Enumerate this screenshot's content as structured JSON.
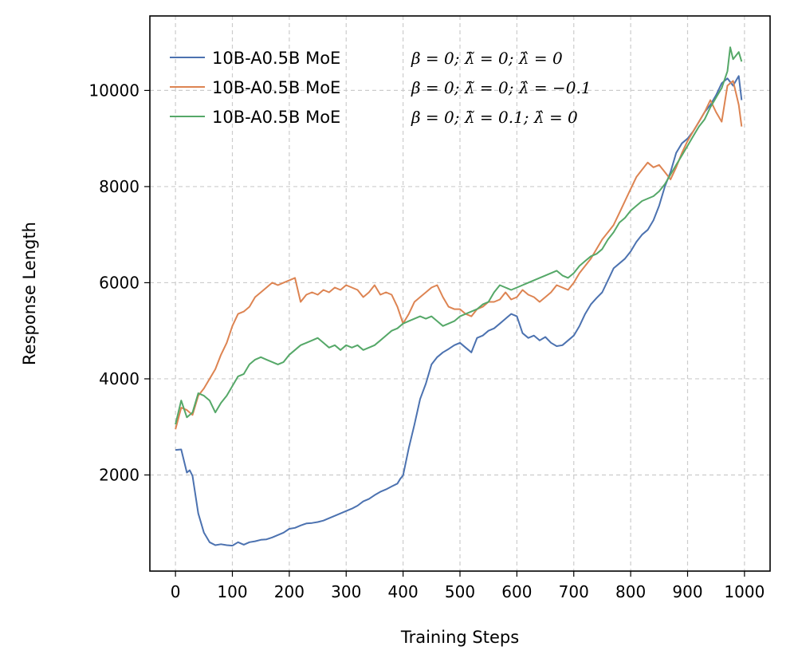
{
  "chart_data": {
    "type": "line",
    "title": "",
    "xlabel": "Training Steps",
    "ylabel": "Response Length",
    "xlim": [
      -45,
      1045
    ],
    "ylim": [
      0,
      11550
    ],
    "x_ticks": [
      0,
      100,
      200,
      300,
      400,
      500,
      600,
      700,
      800,
      900,
      1000
    ],
    "x_tick_labels": [
      "0",
      "100",
      "200",
      "300",
      "400",
      "500",
      "600",
      "700",
      "800",
      "900",
      "1000"
    ],
    "y_ticks": [
      2000,
      4000,
      6000,
      8000,
      10000
    ],
    "y_tick_labels": [
      "2000",
      "4000",
      "6000",
      "8000",
      "10000"
    ],
    "grid": true,
    "legend_position": "top-left",
    "series": [
      {
        "name": "10B-A0.5B MoE",
        "params": "β = 0;  λ̃ = 0;  λ̂ = 0",
        "color": "#4c72b0",
        "points": [
          [
            0,
            2520
          ],
          [
            10,
            2530
          ],
          [
            20,
            2050
          ],
          [
            25,
            2100
          ],
          [
            30,
            1980
          ],
          [
            40,
            1200
          ],
          [
            50,
            800
          ],
          [
            60,
            600
          ],
          [
            70,
            540
          ],
          [
            80,
            560
          ],
          [
            90,
            540
          ],
          [
            100,
            530
          ],
          [
            110,
            600
          ],
          [
            120,
            550
          ],
          [
            130,
            600
          ],
          [
            140,
            620
          ],
          [
            150,
            650
          ],
          [
            160,
            660
          ],
          [
            170,
            700
          ],
          [
            180,
            750
          ],
          [
            190,
            800
          ],
          [
            200,
            880
          ],
          [
            210,
            900
          ],
          [
            220,
            950
          ],
          [
            230,
            990
          ],
          [
            240,
            1000
          ],
          [
            250,
            1020
          ],
          [
            260,
            1050
          ],
          [
            270,
            1100
          ],
          [
            280,
            1150
          ],
          [
            290,
            1200
          ],
          [
            300,
            1250
          ],
          [
            310,
            1300
          ],
          [
            320,
            1360
          ],
          [
            330,
            1450
          ],
          [
            340,
            1500
          ],
          [
            350,
            1580
          ],
          [
            360,
            1650
          ],
          [
            370,
            1700
          ],
          [
            380,
            1760
          ],
          [
            390,
            1820
          ],
          [
            395,
            1920
          ],
          [
            400,
            1990
          ],
          [
            410,
            2560
          ],
          [
            420,
            3050
          ],
          [
            430,
            3580
          ],
          [
            440,
            3900
          ],
          [
            450,
            4300
          ],
          [
            460,
            4450
          ],
          [
            470,
            4550
          ],
          [
            480,
            4620
          ],
          [
            490,
            4700
          ],
          [
            500,
            4750
          ],
          [
            510,
            4650
          ],
          [
            520,
            4550
          ],
          [
            530,
            4850
          ],
          [
            540,
            4900
          ],
          [
            550,
            5000
          ],
          [
            560,
            5050
          ],
          [
            570,
            5150
          ],
          [
            580,
            5250
          ],
          [
            590,
            5350
          ],
          [
            600,
            5300
          ],
          [
            610,
            4950
          ],
          [
            620,
            4850
          ],
          [
            630,
            4900
          ],
          [
            640,
            4800
          ],
          [
            650,
            4870
          ],
          [
            660,
            4750
          ],
          [
            670,
            4680
          ],
          [
            680,
            4700
          ],
          [
            690,
            4800
          ],
          [
            700,
            4900
          ],
          [
            710,
            5100
          ],
          [
            720,
            5350
          ],
          [
            730,
            5550
          ],
          [
            740,
            5680
          ],
          [
            750,
            5800
          ],
          [
            760,
            6050
          ],
          [
            770,
            6300
          ],
          [
            780,
            6400
          ],
          [
            790,
            6500
          ],
          [
            800,
            6650
          ],
          [
            810,
            6850
          ],
          [
            820,
            7000
          ],
          [
            830,
            7100
          ],
          [
            840,
            7300
          ],
          [
            850,
            7600
          ],
          [
            860,
            8000
          ],
          [
            870,
            8300
          ],
          [
            880,
            8700
          ],
          [
            890,
            8900
          ],
          [
            900,
            9000
          ],
          [
            910,
            9150
          ],
          [
            920,
            9350
          ],
          [
            930,
            9550
          ],
          [
            940,
            9700
          ],
          [
            950,
            9900
          ],
          [
            960,
            10150
          ],
          [
            970,
            10250
          ],
          [
            980,
            10100
          ],
          [
            990,
            10300
          ],
          [
            995,
            9800
          ]
        ]
      },
      {
        "name": "10B-A0.5B MoE",
        "params": "β = 0;  λ̃ = 0;  λ̂ = −0.1",
        "color": "#dd8452",
        "points": [
          [
            0,
            2950
          ],
          [
            10,
            3400
          ],
          [
            20,
            3350
          ],
          [
            30,
            3250
          ],
          [
            40,
            3650
          ],
          [
            50,
            3800
          ],
          [
            60,
            4000
          ],
          [
            70,
            4200
          ],
          [
            80,
            4500
          ],
          [
            90,
            4750
          ],
          [
            100,
            5100
          ],
          [
            110,
            5350
          ],
          [
            120,
            5400
          ],
          [
            130,
            5500
          ],
          [
            140,
            5700
          ],
          [
            150,
            5800
          ],
          [
            160,
            5900
          ],
          [
            170,
            6000
          ],
          [
            180,
            5950
          ],
          [
            190,
            6000
          ],
          [
            200,
            6050
          ],
          [
            210,
            6100
          ],
          [
            220,
            5600
          ],
          [
            230,
            5750
          ],
          [
            240,
            5800
          ],
          [
            250,
            5750
          ],
          [
            260,
            5850
          ],
          [
            270,
            5800
          ],
          [
            280,
            5900
          ],
          [
            290,
            5850
          ],
          [
            300,
            5950
          ],
          [
            310,
            5900
          ],
          [
            320,
            5850
          ],
          [
            330,
            5700
          ],
          [
            340,
            5800
          ],
          [
            350,
            5950
          ],
          [
            360,
            5750
          ],
          [
            370,
            5800
          ],
          [
            380,
            5750
          ],
          [
            390,
            5500
          ],
          [
            400,
            5150
          ],
          [
            410,
            5350
          ],
          [
            420,
            5600
          ],
          [
            430,
            5700
          ],
          [
            440,
            5800
          ],
          [
            450,
            5900
          ],
          [
            460,
            5950
          ],
          [
            470,
            5700
          ],
          [
            480,
            5500
          ],
          [
            490,
            5450
          ],
          [
            500,
            5450
          ],
          [
            510,
            5350
          ],
          [
            520,
            5300
          ],
          [
            530,
            5450
          ],
          [
            540,
            5500
          ],
          [
            550,
            5600
          ],
          [
            560,
            5600
          ],
          [
            570,
            5650
          ],
          [
            580,
            5800
          ],
          [
            590,
            5650
          ],
          [
            600,
            5700
          ],
          [
            610,
            5850
          ],
          [
            620,
            5750
          ],
          [
            630,
            5700
          ],
          [
            640,
            5600
          ],
          [
            650,
            5700
          ],
          [
            660,
            5800
          ],
          [
            670,
            5950
          ],
          [
            680,
            5900
          ],
          [
            690,
            5850
          ],
          [
            700,
            6000
          ],
          [
            710,
            6200
          ],
          [
            720,
            6350
          ],
          [
            730,
            6500
          ],
          [
            740,
            6700
          ],
          [
            750,
            6900
          ],
          [
            760,
            7050
          ],
          [
            770,
            7200
          ],
          [
            780,
            7450
          ],
          [
            790,
            7700
          ],
          [
            800,
            7950
          ],
          [
            810,
            8200
          ],
          [
            820,
            8350
          ],
          [
            830,
            8500
          ],
          [
            840,
            8400
          ],
          [
            850,
            8450
          ],
          [
            860,
            8300
          ],
          [
            870,
            8150
          ],
          [
            880,
            8400
          ],
          [
            890,
            8700
          ],
          [
            900,
            8950
          ],
          [
            910,
            9150
          ],
          [
            920,
            9350
          ],
          [
            930,
            9550
          ],
          [
            940,
            9800
          ],
          [
            950,
            9550
          ],
          [
            960,
            9350
          ],
          [
            970,
            10100
          ],
          [
            980,
            10200
          ],
          [
            990,
            9700
          ],
          [
            995,
            9250
          ]
        ]
      },
      {
        "name": "10B-A0.5B MoE",
        "params": "β = 0;  λ̃ = 0.1;  λ̂ = 0",
        "color": "#55a868",
        "points": [
          [
            0,
            3050
          ],
          [
            10,
            3550
          ],
          [
            20,
            3200
          ],
          [
            30,
            3300
          ],
          [
            40,
            3700
          ],
          [
            50,
            3650
          ],
          [
            60,
            3550
          ],
          [
            70,
            3300
          ],
          [
            80,
            3500
          ],
          [
            90,
            3650
          ],
          [
            100,
            3850
          ],
          [
            110,
            4050
          ],
          [
            120,
            4100
          ],
          [
            130,
            4300
          ],
          [
            140,
            4400
          ],
          [
            150,
            4450
          ],
          [
            160,
            4400
          ],
          [
            170,
            4350
          ],
          [
            180,
            4300
          ],
          [
            190,
            4350
          ],
          [
            200,
            4500
          ],
          [
            210,
            4600
          ],
          [
            220,
            4700
          ],
          [
            230,
            4750
          ],
          [
            240,
            4800
          ],
          [
            250,
            4850
          ],
          [
            260,
            4750
          ],
          [
            270,
            4650
          ],
          [
            280,
            4700
          ],
          [
            290,
            4600
          ],
          [
            300,
            4700
          ],
          [
            310,
            4650
          ],
          [
            320,
            4700
          ],
          [
            330,
            4600
          ],
          [
            340,
            4650
          ],
          [
            350,
            4700
          ],
          [
            360,
            4800
          ],
          [
            370,
            4900
          ],
          [
            380,
            5000
          ],
          [
            390,
            5050
          ],
          [
            400,
            5150
          ],
          [
            410,
            5200
          ],
          [
            420,
            5250
          ],
          [
            430,
            5300
          ],
          [
            440,
            5250
          ],
          [
            450,
            5300
          ],
          [
            460,
            5200
          ],
          [
            470,
            5100
          ],
          [
            480,
            5150
          ],
          [
            490,
            5200
          ],
          [
            500,
            5300
          ],
          [
            510,
            5350
          ],
          [
            520,
            5400
          ],
          [
            530,
            5450
          ],
          [
            540,
            5550
          ],
          [
            550,
            5600
          ],
          [
            560,
            5800
          ],
          [
            570,
            5950
          ],
          [
            580,
            5900
          ],
          [
            590,
            5850
          ],
          [
            600,
            5900
          ],
          [
            610,
            5950
          ],
          [
            620,
            6000
          ],
          [
            630,
            6050
          ],
          [
            640,
            6100
          ],
          [
            650,
            6150
          ],
          [
            660,
            6200
          ],
          [
            670,
            6250
          ],
          [
            680,
            6150
          ],
          [
            690,
            6100
          ],
          [
            700,
            6200
          ],
          [
            710,
            6350
          ],
          [
            720,
            6450
          ],
          [
            730,
            6550
          ],
          [
            740,
            6600
          ],
          [
            750,
            6700
          ],
          [
            760,
            6900
          ],
          [
            770,
            7050
          ],
          [
            780,
            7250
          ],
          [
            790,
            7350
          ],
          [
            800,
            7500
          ],
          [
            810,
            7600
          ],
          [
            820,
            7700
          ],
          [
            830,
            7750
          ],
          [
            840,
            7800
          ],
          [
            850,
            7900
          ],
          [
            860,
            8050
          ],
          [
            870,
            8250
          ],
          [
            880,
            8450
          ],
          [
            890,
            8650
          ],
          [
            900,
            8850
          ],
          [
            910,
            9050
          ],
          [
            920,
            9250
          ],
          [
            930,
            9400
          ],
          [
            940,
            9650
          ],
          [
            950,
            9850
          ],
          [
            960,
            10050
          ],
          [
            970,
            10400
          ],
          [
            975,
            10900
          ],
          [
            980,
            10650
          ],
          [
            990,
            10800
          ],
          [
            995,
            10600
          ]
        ]
      }
    ]
  }
}
